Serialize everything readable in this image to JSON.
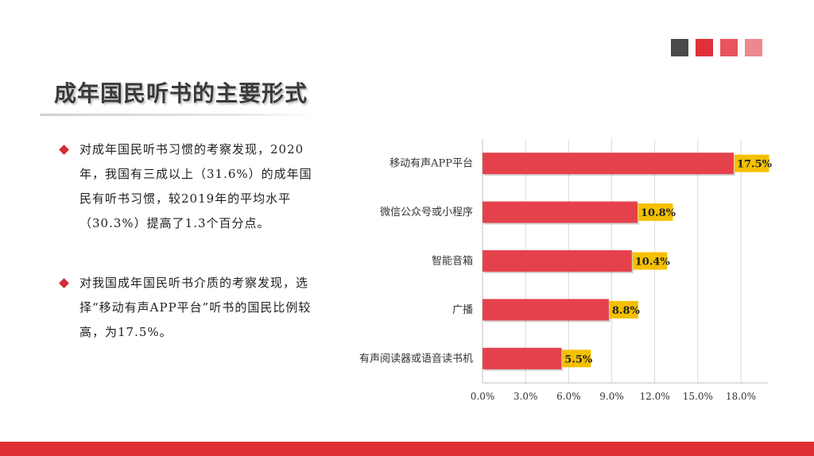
{
  "title": "成年国民听书的主要形式",
  "accent_squares": [
    "#4a4a4a",
    "#e0303a",
    "#e8545c",
    "#ee8890"
  ],
  "bullets": [
    "对成年国民听书习惯的考察发现，2020年，我国有三成以上（31.6%）的成年国民有听书习惯，较2019年的平均水平（30.3%）提高了1.3个百分点。",
    "对我国成年国民听书介质的考察发现，选择“移动有声APP平台”听书的国民比例较高，为17.5%。"
  ],
  "colors": {
    "bar": "#e5414b",
    "label_bg": "#f5c000",
    "footer": "#e03035",
    "bullet": "#d62b35"
  },
  "chart_data": {
    "type": "bar",
    "orientation": "horizontal",
    "categories": [
      "移动有声APP平台",
      "微信公众号或小程序",
      "智能音箱",
      "广播",
      "有声阅读器或语音读书机"
    ],
    "values": [
      17.5,
      10.8,
      10.4,
      8.8,
      5.5
    ],
    "value_labels": [
      "17.5%",
      "10.8%",
      "10.4%",
      "8.8%",
      "5.5%"
    ],
    "xlim": [
      0,
      18
    ],
    "xticks": [
      0,
      3,
      6,
      9,
      12,
      15,
      18
    ],
    "xtick_labels": [
      "0.0%",
      "3.0%",
      "6.0%",
      "9.0%",
      "12.0%",
      "15.0%",
      "18.0%"
    ],
    "grid": true
  }
}
